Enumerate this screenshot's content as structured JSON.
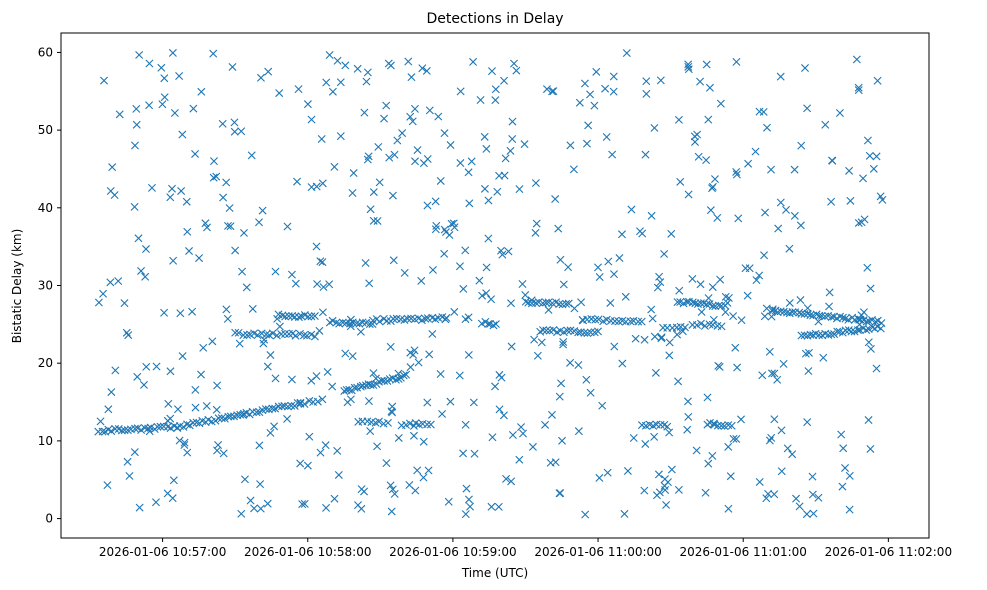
{
  "chart_data": {
    "type": "scatter",
    "title": "Detections in Delay",
    "xlabel": "Time (UTC)",
    "ylabel": "Bistatic Delay (km)",
    "marker": "x",
    "color": "#1f77b4",
    "grid": false,
    "x_unit": "minutes since 2026-01-06 10:56:00",
    "xlim": [
      0.3,
      6.28
    ],
    "ylim": [
      -2.5,
      62.5
    ],
    "x_ticks": [
      {
        "value": 1,
        "label": "2026-01-06 10:57:00"
      },
      {
        "value": 2,
        "label": "2026-01-06 10:58:00"
      },
      {
        "value": 3,
        "label": "2026-01-06 10:59:00"
      },
      {
        "value": 4,
        "label": "2026-01-06 11:00:00"
      },
      {
        "value": 5,
        "label": "2026-01-06 11:01:00"
      },
      {
        "value": 6,
        "label": "2026-01-06 11:02:00"
      }
    ],
    "y_ticks": [
      {
        "value": 0,
        "label": "0"
      },
      {
        "value": 10,
        "label": "10"
      },
      {
        "value": 20,
        "label": "20"
      },
      {
        "value": 30,
        "label": "30"
      },
      {
        "value": 40,
        "label": "40"
      },
      {
        "value": 50,
        "label": "50"
      },
      {
        "value": 60,
        "label": "60"
      }
    ],
    "track_segments": [
      {
        "x0": 0.56,
        "x1": 1.1,
        "y0": 11.3,
        "y1": 11.8,
        "n": 25
      },
      {
        "x0": 1.1,
        "x1": 1.95,
        "y0": 11.8,
        "y1": 14.8,
        "n": 40
      },
      {
        "x0": 1.95,
        "x1": 2.1,
        "y0": 14.8,
        "y1": 15.3,
        "n": 6
      },
      {
        "x0": 2.25,
        "x1": 2.68,
        "y0": 16.3,
        "y1": 18.4,
        "n": 24
      },
      {
        "x0": 1.8,
        "x1": 2.05,
        "y0": 26.2,
        "y1": 26.0,
        "n": 12
      },
      {
        "x0": 1.5,
        "x1": 2.05,
        "y0": 23.8,
        "y1": 23.6,
        "n": 22
      },
      {
        "x0": 2.15,
        "x1": 2.45,
        "y0": 25.3,
        "y1": 25.1,
        "n": 14
      },
      {
        "x0": 2.45,
        "x1": 2.95,
        "y0": 25.5,
        "y1": 25.8,
        "n": 22
      },
      {
        "x0": 3.2,
        "x1": 3.3,
        "y0": 25.2,
        "y1": 25.0,
        "n": 6
      },
      {
        "x0": 3.5,
        "x1": 3.8,
        "y0": 27.8,
        "y1": 27.7,
        "n": 14
      },
      {
        "x0": 3.6,
        "x1": 4.0,
        "y0": 24.2,
        "y1": 24.0,
        "n": 18
      },
      {
        "x0": 3.9,
        "x1": 4.3,
        "y0": 25.6,
        "y1": 25.4,
        "n": 16
      },
      {
        "x0": 4.45,
        "x1": 4.6,
        "y0": 24.6,
        "y1": 24.5,
        "n": 6
      },
      {
        "x0": 4.55,
        "x1": 4.85,
        "y0": 27.9,
        "y1": 27.4,
        "n": 16
      },
      {
        "x0": 4.65,
        "x1": 4.85,
        "y0": 25.0,
        "y1": 24.8,
        "n": 8
      },
      {
        "x0": 5.2,
        "x1": 5.95,
        "y0": 26.8,
        "y1": 25.3,
        "n": 38
      },
      {
        "x0": 5.4,
        "x1": 5.95,
        "y0": 23.4,
        "y1": 24.6,
        "n": 28
      },
      {
        "x0": 2.35,
        "x1": 2.55,
        "y0": 12.4,
        "y1": 12.3,
        "n": 8
      },
      {
        "x0": 2.65,
        "x1": 2.85,
        "y0": 12.1,
        "y1": 12.0,
        "n": 8
      },
      {
        "x0": 4.3,
        "x1": 4.48,
        "y0": 12.1,
        "y1": 12.0,
        "n": 8
      },
      {
        "x0": 4.75,
        "x1": 4.92,
        "y0": 12.2,
        "y1": 12.0,
        "n": 8
      }
    ],
    "noise_cloud": {
      "x_range": [
        0.56,
        5.96
      ],
      "y_range": [
        0.5,
        60.0
      ],
      "n": 620
    }
  }
}
